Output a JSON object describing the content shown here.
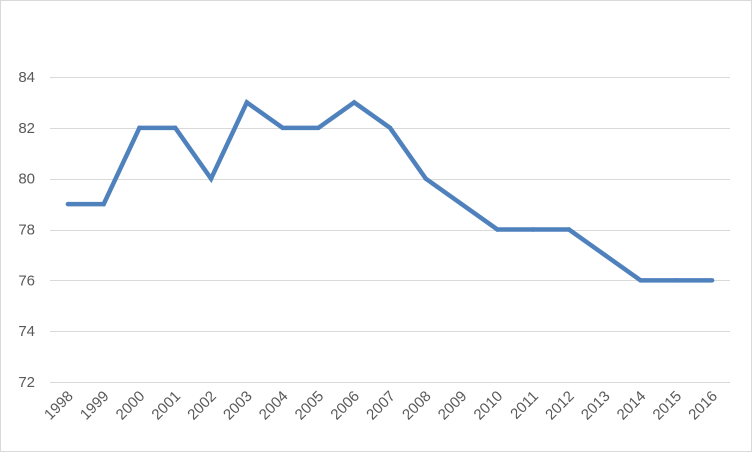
{
  "chart_data": {
    "type": "line",
    "title": "",
    "xlabel": "",
    "ylabel": "",
    "x": [
      "1998",
      "1999",
      "2000",
      "2001",
      "2002",
      "2003",
      "2004",
      "2005",
      "2006",
      "2007",
      "2008",
      "2009",
      "2010",
      "2011",
      "2012",
      "2013",
      "2014",
      "2015",
      "2016"
    ],
    "series": [
      {
        "values": [
          79,
          79,
          82,
          82,
          80,
          83,
          82,
          82,
          83,
          82,
          80,
          79,
          78,
          78,
          78,
          77,
          76,
          76,
          76
        ],
        "color": "#4f81bd"
      }
    ],
    "ylim": [
      72,
      84
    ],
    "yticks": [
      72,
      74,
      76,
      78,
      80,
      82,
      84
    ],
    "grid": true,
    "legend": "none"
  }
}
